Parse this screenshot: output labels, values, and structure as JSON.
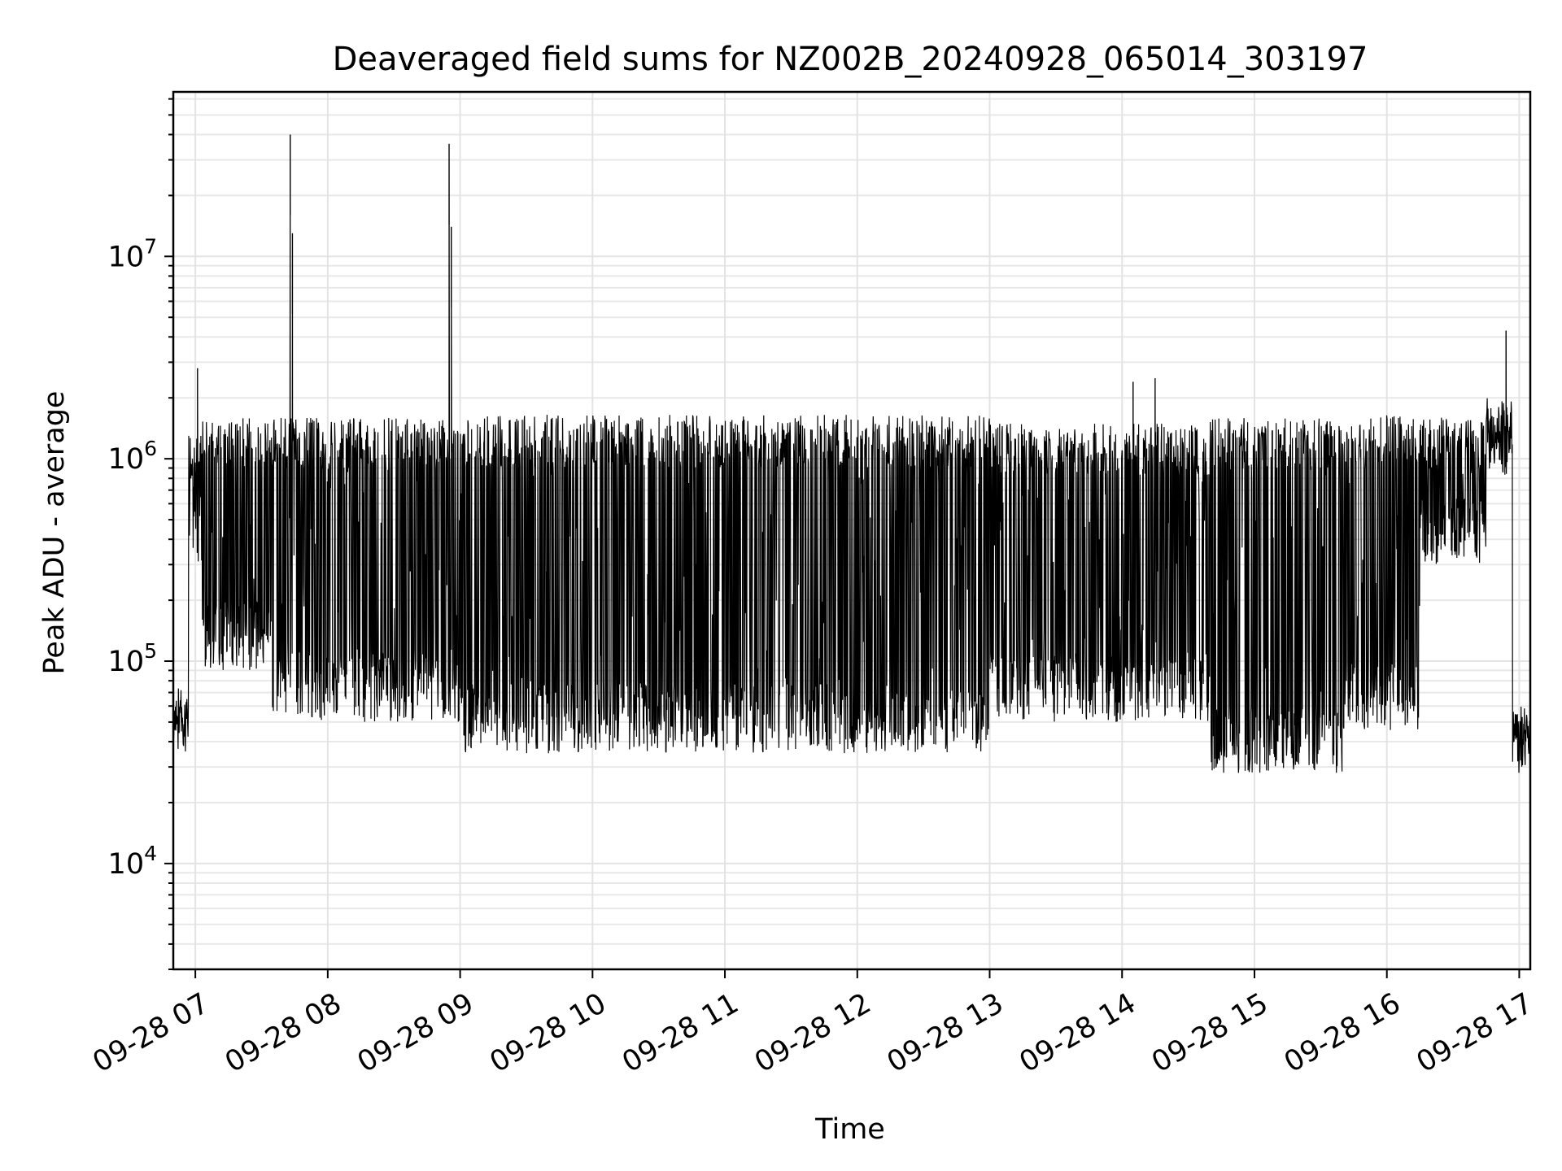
{
  "chart_data": {
    "type": "line",
    "title": "Deaveraged field sums for NZ002B_20240928_065014_303197",
    "xlabel": "Time",
    "ylabel": "Peak ADU - average",
    "yscale": "log",
    "ylim": [
      3000,
      65000000
    ],
    "xlim": [
      "2024-09-28 06:50",
      "2024-09-28 17:05"
    ],
    "x_ticks": [
      {
        "value": "2024-09-28 07:00",
        "label": "09-28 07"
      },
      {
        "value": "2024-09-28 08:00",
        "label": "09-28 08"
      },
      {
        "value": "2024-09-28 09:00",
        "label": "09-28 09"
      },
      {
        "value": "2024-09-28 10:00",
        "label": "09-28 10"
      },
      {
        "value": "2024-09-28 11:00",
        "label": "09-28 11"
      },
      {
        "value": "2024-09-28 12:00",
        "label": "09-28 12"
      },
      {
        "value": "2024-09-28 13:00",
        "label": "09-28 13"
      },
      {
        "value": "2024-09-28 14:00",
        "label": "09-28 14"
      },
      {
        "value": "2024-09-28 15:00",
        "label": "09-28 15"
      },
      {
        "value": "2024-09-28 16:00",
        "label": "09-28 16"
      },
      {
        "value": "2024-09-28 17:00",
        "label": "09-28 17"
      }
    ],
    "y_ticks": [
      {
        "value": 10000,
        "base": "10",
        "exp": "4"
      },
      {
        "value": 100000,
        "base": "10",
        "exp": "5"
      },
      {
        "value": 1000000,
        "base": "10",
        "exp": "6"
      },
      {
        "value": 10000000,
        "base": "10",
        "exp": "7"
      }
    ],
    "grid": true,
    "line_color": "#000000",
    "series": [
      {
        "description_of_shape": "dense rapidly oscillating signal; envelope approx 5e4 to 1.6e6",
        "segments": [
          {
            "start": "2024-09-28 06:50",
            "end": "2024-09-28 06:57",
            "low": 36000,
            "high": 65000
          },
          {
            "start": "2024-09-28 06:57",
            "end": "2024-09-28 07:03",
            "low": 300000,
            "high": 1300000
          },
          {
            "start": "2024-09-28 07:03",
            "end": "2024-09-28 07:35",
            "low": 90000,
            "high": 1600000
          },
          {
            "start": "2024-09-28 07:35",
            "end": "2024-09-28 09:00",
            "low": 50000,
            "high": 1600000
          },
          {
            "start": "2024-09-28 09:00",
            "end": "2024-09-28 13:00",
            "low": 35000,
            "high": 1650000
          },
          {
            "start": "2024-09-28 13:00",
            "end": "2024-09-28 14:40",
            "low": 50000,
            "high": 1500000
          },
          {
            "start": "2024-09-28 14:40",
            "end": "2024-09-28 15:40",
            "low": 28000,
            "high": 1600000
          },
          {
            "start": "2024-09-28 15:40",
            "end": "2024-09-28 16:15",
            "low": 45000,
            "high": 1650000
          },
          {
            "start": "2024-09-28 16:15",
            "end": "2024-09-28 16:45",
            "low": 300000,
            "high": 1600000
          },
          {
            "start": "2024-09-28 16:45",
            "end": "2024-09-28 16:57",
            "low": 800000,
            "high": 2000000
          },
          {
            "start": "2024-09-28 16:57",
            "end": "2024-09-28 17:05",
            "low": 28000,
            "high": 60000
          }
        ],
        "spikes": [
          {
            "x": "2024-09-28 07:01",
            "y": 2800000
          },
          {
            "x": "2024-09-28 07:43",
            "y": 40000000
          },
          {
            "x": "2024-09-28 07:44",
            "y": 13000000
          },
          {
            "x": "2024-09-28 08:55",
            "y": 36000000
          },
          {
            "x": "2024-09-28 08:56",
            "y": 14000000
          },
          {
            "x": "2024-09-28 14:05",
            "y": 2400000
          },
          {
            "x": "2024-09-28 14:15",
            "y": 2500000
          },
          {
            "x": "2024-09-28 16:54",
            "y": 4300000
          }
        ]
      }
    ]
  }
}
